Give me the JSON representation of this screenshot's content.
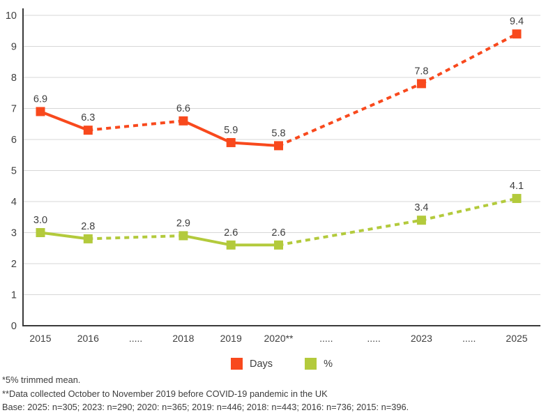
{
  "chart_data": {
    "type": "line",
    "title": "",
    "categories": [
      "2015",
      "2016",
      ".....",
      "2018",
      "2019",
      "2020**",
      ".....",
      ".....",
      "2023",
      ".....",
      "2025"
    ],
    "y_axis": {
      "min": 0,
      "max": 10,
      "tick_step": 1,
      "tick_labels": [
        "0",
        "1",
        "2",
        "3",
        "4",
        "5",
        "6",
        "7",
        "8",
        "9",
        "10"
      ]
    },
    "grid": true,
    "legend_position": "bottom",
    "colors": {
      "axis": "#3a3a3a",
      "grid": "#d7d7d7",
      "text": "#3e3e3e"
    },
    "series": [
      {
        "id": "days",
        "name": "Days",
        "color": "#f8491d",
        "marker": "square",
        "points": [
          {
            "category_index": 0,
            "category": "2015",
            "value": 6.9,
            "label": "6.9"
          },
          {
            "category_index": 1,
            "category": "2016",
            "value": 6.3,
            "label": "6.3"
          },
          {
            "category_index": 3,
            "category": "2018",
            "value": 6.6,
            "label": "6.6"
          },
          {
            "category_index": 4,
            "category": "2019",
            "value": 5.9,
            "label": "5.9"
          },
          {
            "category_index": 5,
            "category": "2020**",
            "value": 5.8,
            "label": "5.8"
          },
          {
            "category_index": 8,
            "category": "2023",
            "value": 7.8,
            "label": "7.8"
          },
          {
            "category_index": 10,
            "category": "2025",
            "value": 9.4,
            "label": "9.4"
          }
        ],
        "segment_styles": [
          "solid",
          "dashed",
          "solid",
          "solid",
          "dashed",
          "dashed"
        ]
      },
      {
        "id": "percent",
        "name": "%",
        "color": "#b3ca3c",
        "marker": "square",
        "points": [
          {
            "category_index": 0,
            "category": "2015",
            "value": 3.0,
            "label": "3.0"
          },
          {
            "category_index": 1,
            "category": "2016",
            "value": 2.8,
            "label": "2.8"
          },
          {
            "category_index": 3,
            "category": "2018",
            "value": 2.9,
            "label": "2.9"
          },
          {
            "category_index": 4,
            "category": "2019",
            "value": 2.6,
            "label": "2.6"
          },
          {
            "category_index": 5,
            "category": "2020**",
            "value": 2.6,
            "label": "2.6"
          },
          {
            "category_index": 8,
            "category": "2023",
            "value": 3.4,
            "label": "3.4"
          },
          {
            "category_index": 10,
            "category": "2025",
            "value": 4.1,
            "label": "4.1"
          }
        ],
        "segment_styles": [
          "solid",
          "dashed",
          "solid",
          "solid",
          "dashed",
          "dashed"
        ]
      }
    ]
  },
  "legend": {
    "items": [
      {
        "label": "Days",
        "color": "#f8491d"
      },
      {
        "label": "%",
        "color": "#b3ca3c"
      }
    ]
  },
  "footnotes": [
    "*5% trimmed mean.",
    "**Data collected October to November 2019 before COVID-19 pandemic in the UK",
    "Base: 2025: n=305; 2023: n=290; 2020: n=365; 2019: n=446; 2018: n=443; 2016: n=736; 2015: n=396."
  ]
}
